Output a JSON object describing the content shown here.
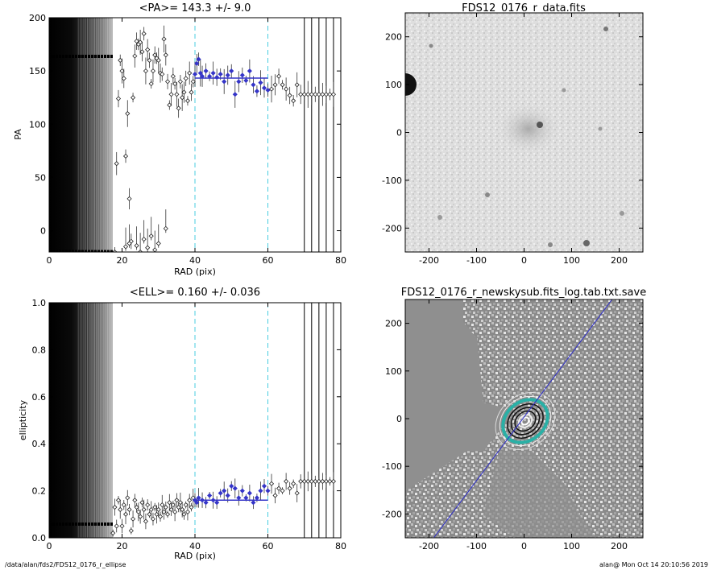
{
  "chart_data": [
    {
      "id": "pa",
      "type": "scatter",
      "title": "<PA>= 143.3 +/-   9.0",
      "xlabel": "RAD (pix)",
      "ylabel": "PA",
      "xlim": [
        0,
        80
      ],
      "ylim": [
        -20,
        200
      ],
      "xticks": [
        "0",
        "20",
        "40",
        "60",
        "80"
      ],
      "yticks": [
        "0",
        "50",
        "100",
        "150",
        "200"
      ],
      "vlines_dashed": [
        40,
        60
      ],
      "vlines_solid": [
        70,
        72,
        74,
        76,
        78
      ],
      "mean_line": {
        "x": [
          40,
          60
        ],
        "y": 143.3
      },
      "points": [
        [
          18,
          -20
        ],
        [
          18.5,
          63
        ],
        [
          19,
          124
        ],
        [
          19.5,
          160
        ],
        [
          20,
          150
        ],
        [
          20.5,
          143
        ],
        [
          21,
          70
        ],
        [
          21.5,
          110
        ],
        [
          22,
          30
        ],
        [
          22.5,
          -10
        ],
        [
          23,
          125
        ],
        [
          23.5,
          164
        ],
        [
          24,
          178
        ],
        [
          24.5,
          175
        ],
        [
          25,
          177
        ],
        [
          25.5,
          168
        ],
        [
          26,
          185
        ],
        [
          26.5,
          150
        ],
        [
          27,
          170
        ],
        [
          27.5,
          160
        ],
        [
          28,
          138
        ],
        [
          28.5,
          150
        ],
        [
          29,
          165
        ],
        [
          29.5,
          162
        ],
        [
          30,
          160
        ],
        [
          30.5,
          148
        ],
        [
          31,
          147
        ],
        [
          31.5,
          180
        ],
        [
          32,
          165
        ],
        [
          32.5,
          140
        ],
        [
          33,
          118
        ],
        [
          33.5,
          128
        ],
        [
          34,
          145
        ],
        [
          34.5,
          138
        ],
        [
          35,
          128
        ],
        [
          35.5,
          115
        ],
        [
          36,
          140
        ],
        [
          36.5,
          125
        ],
        [
          37,
          130
        ],
        [
          37.5,
          143
        ],
        [
          38,
          122
        ],
        [
          38.5,
          148
        ],
        [
          39,
          130
        ],
        [
          39.5,
          140
        ],
        [
          40,
          147
        ],
        [
          40.5,
          157
        ],
        [
          41,
          161
        ],
        [
          41.5,
          148
        ],
        [
          42,
          145
        ],
        [
          43,
          150
        ],
        [
          44,
          145
        ],
        [
          45,
          148
        ],
        [
          46,
          144
        ],
        [
          47,
          147
        ],
        [
          48,
          140
        ],
        [
          49,
          146
        ],
        [
          50,
          150
        ],
        [
          51,
          128
        ],
        [
          52,
          140
        ],
        [
          53,
          146
        ],
        [
          54,
          141
        ],
        [
          55,
          150
        ],
        [
          56,
          137
        ],
        [
          57,
          131
        ],
        [
          58,
          139
        ],
        [
          59,
          134
        ],
        [
          60,
          132
        ],
        [
          61,
          133
        ],
        [
          62,
          137
        ],
        [
          63,
          145
        ],
        [
          64,
          137
        ],
        [
          65,
          133
        ],
        [
          66,
          127
        ],
        [
          67,
          122
        ],
        [
          68,
          137
        ],
        [
          69,
          128
        ],
        [
          70,
          128
        ],
        [
          71,
          128
        ],
        [
          72,
          128
        ],
        [
          73,
          128
        ],
        [
          74,
          128
        ],
        [
          75,
          128
        ],
        [
          76,
          128
        ],
        [
          77,
          128
        ],
        [
          78,
          128
        ]
      ],
      "low_points": [
        [
          21,
          -15
        ],
        [
          22,
          -12
        ],
        [
          24,
          -14
        ],
        [
          25,
          -20
        ],
        [
          26,
          -8
        ],
        [
          27,
          -16
        ],
        [
          28,
          -5
        ],
        [
          29,
          -18
        ],
        [
          30,
          -12
        ],
        [
          32,
          2
        ]
      ]
    },
    {
      "id": "ell",
      "type": "scatter",
      "title": "<ELL>= 0.160 +/-  0.036",
      "xlabel": "RAD (pix)",
      "ylabel": "ellipticity",
      "xlim": [
        0,
        80
      ],
      "ylim": [
        0,
        1.0
      ],
      "xticks": [
        "0",
        "20",
        "40",
        "60",
        "80"
      ],
      "yticks": [
        "0.0",
        "0.2",
        "0.4",
        "0.6",
        "0.8",
        "1.0"
      ],
      "vlines_dashed": [
        40,
        60
      ],
      "vlines_solid": [
        70,
        72,
        74,
        76,
        78
      ],
      "mean_line": {
        "x": [
          40,
          60
        ],
        "y": 0.16
      },
      "points": [
        [
          17.5,
          0.02
        ],
        [
          18,
          0.13
        ],
        [
          18.5,
          0.05
        ],
        [
          19,
          0.16
        ],
        [
          19.5,
          0.12
        ],
        [
          20,
          0.05
        ],
        [
          20.5,
          0.14
        ],
        [
          21,
          0.1
        ],
        [
          21.5,
          0.17
        ],
        [
          22,
          0.12
        ],
        [
          22.5,
          0.03
        ],
        [
          23,
          0.08
        ],
        [
          23.5,
          0.16
        ],
        [
          24,
          0.13
        ],
        [
          24.5,
          0.11
        ],
        [
          25,
          0.09
        ],
        [
          25.5,
          0.15
        ],
        [
          26,
          0.12
        ],
        [
          26.5,
          0.07
        ],
        [
          27,
          0.14
        ],
        [
          27.5,
          0.1
        ],
        [
          28,
          0.12
        ],
        [
          28.5,
          0.08
        ],
        [
          29,
          0.13
        ],
        [
          29.5,
          0.1
        ],
        [
          30,
          0.12
        ],
        [
          30.5,
          0.09
        ],
        [
          31,
          0.14
        ],
        [
          31.5,
          0.11
        ],
        [
          32,
          0.13
        ],
        [
          32.5,
          0.1
        ],
        [
          33,
          0.15
        ],
        [
          33.5,
          0.12
        ],
        [
          34,
          0.14
        ],
        [
          34.5,
          0.11
        ],
        [
          35,
          0.16
        ],
        [
          35.5,
          0.13
        ],
        [
          36,
          0.15
        ],
        [
          36.5,
          0.12
        ],
        [
          37,
          0.1
        ],
        [
          37.5,
          0.14
        ],
        [
          38,
          0.11
        ],
        [
          38.5,
          0.16
        ],
        [
          39,
          0.13
        ],
        [
          39.5,
          0.17
        ],
        [
          40,
          0.16
        ],
        [
          40.5,
          0.15
        ],
        [
          41,
          0.17
        ],
        [
          42,
          0.16
        ],
        [
          43,
          0.15
        ],
        [
          44,
          0.18
        ],
        [
          45,
          0.16
        ],
        [
          46,
          0.15
        ],
        [
          47,
          0.19
        ],
        [
          48,
          0.2
        ],
        [
          49,
          0.18
        ],
        [
          50,
          0.22
        ],
        [
          51,
          0.21
        ],
        [
          52,
          0.17
        ],
        [
          53,
          0.2
        ],
        [
          54,
          0.17
        ],
        [
          55,
          0.19
        ],
        [
          56,
          0.15
        ],
        [
          57,
          0.17
        ],
        [
          58,
          0.2
        ],
        [
          59,
          0.22
        ],
        [
          60,
          0.2
        ],
        [
          61,
          0.23
        ],
        [
          62,
          0.18
        ],
        [
          63,
          0.21
        ],
        [
          64,
          0.2
        ],
        [
          65,
          0.24
        ],
        [
          66,
          0.21
        ],
        [
          67,
          0.23
        ],
        [
          68,
          0.19
        ],
        [
          69,
          0.24
        ],
        [
          70,
          0.24
        ],
        [
          71,
          0.24
        ],
        [
          72,
          0.24
        ],
        [
          73,
          0.24
        ],
        [
          74,
          0.24
        ],
        [
          75,
          0.24
        ],
        [
          76,
          0.24
        ],
        [
          77,
          0.24
        ],
        [
          78,
          0.24
        ]
      ]
    },
    {
      "id": "data_img",
      "type": "heatmap",
      "title": "FDS12_0176_r_data.fits",
      "xlim": [
        -250,
        250
      ],
      "ylim": [
        -250,
        250
      ],
      "xticks": [
        "-200",
        "-100",
        "0",
        "100",
        "200"
      ],
      "yticks": [
        "-200",
        "-100",
        "0",
        "100",
        "200"
      ]
    },
    {
      "id": "sky_img",
      "type": "heatmap",
      "title": "FDS12_0176_r_newskysub.fits_log.tab.txt.save",
      "xlim": [
        -250,
        250
      ],
      "ylim": [
        -250,
        250
      ],
      "xticks": [
        "-200",
        "-100",
        "0",
        "100",
        "200"
      ],
      "yticks": [
        "-200",
        "-100",
        "0",
        "100",
        "200"
      ],
      "pa_line": {
        "from": [
          -190,
          -250
        ],
        "to": [
          185,
          250
        ]
      }
    }
  ],
  "footer": {
    "left": "/data/alan/fds2/FDS12_0176_r_ellipse",
    "right": "alan@  Mon Oct 14 20:10:56 2019"
  }
}
